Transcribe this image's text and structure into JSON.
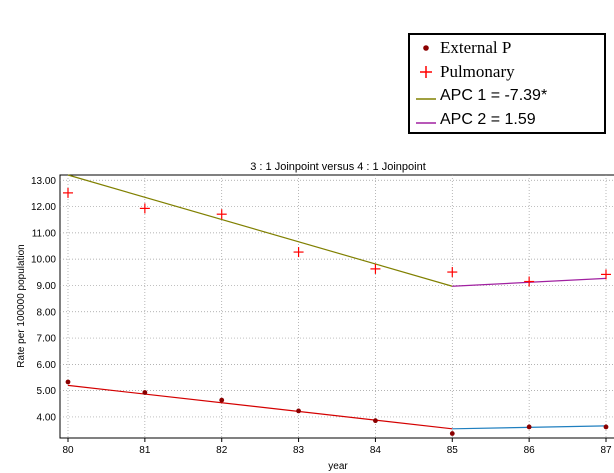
{
  "chart_data": {
    "type": "line",
    "title": "3 : 1 Joinpoint  versus  4 : 1 Joinpoint",
    "xlabel": "year",
    "ylabel": "Rate per 100000 population",
    "x": [
      "80",
      "81",
      "82",
      "83",
      "84",
      "85",
      "86",
      "87"
    ],
    "xlim": [
      80,
      87
    ],
    "ylim": [
      3.2,
      13.2
    ],
    "yticks": [
      "4.00",
      "5.00",
      "6.00",
      "7.00",
      "8.00",
      "9.00",
      "10.00",
      "11.00",
      "12.00",
      "13.00"
    ],
    "grid": true,
    "legend_position": "top-right",
    "series": [
      {
        "name": "External P",
        "kind": "points",
        "marker": "dot",
        "color": "#8b0000",
        "values": [
          5.33,
          4.93,
          4.64,
          4.23,
          3.86,
          3.37,
          3.62,
          3.62
        ]
      },
      {
        "name": "Pulmonary",
        "kind": "points",
        "marker": "plus",
        "color": "#ff0000",
        "values": [
          12.52,
          11.93,
          11.71,
          10.27,
          9.63,
          9.51,
          9.15,
          9.42
        ]
      },
      {
        "kind": "line",
        "color": "#d40000",
        "points": [
          [
            80,
            5.2
          ],
          [
            85,
            3.55
          ]
        ]
      },
      {
        "kind": "line",
        "color": "#1f7fbf",
        "points": [
          [
            85,
            3.55
          ],
          [
            87,
            3.66
          ]
        ]
      },
      {
        "name": "APC 1 = -7.39*",
        "kind": "line",
        "color": "#808000",
        "points": [
          [
            80,
            13.2
          ],
          [
            85,
            8.97
          ]
        ]
      },
      {
        "name": "APC 2 =  1.59",
        "kind": "line",
        "color": "#a020a0",
        "points": [
          [
            85,
            8.97
          ],
          [
            87,
            9.27
          ]
        ]
      }
    ]
  }
}
